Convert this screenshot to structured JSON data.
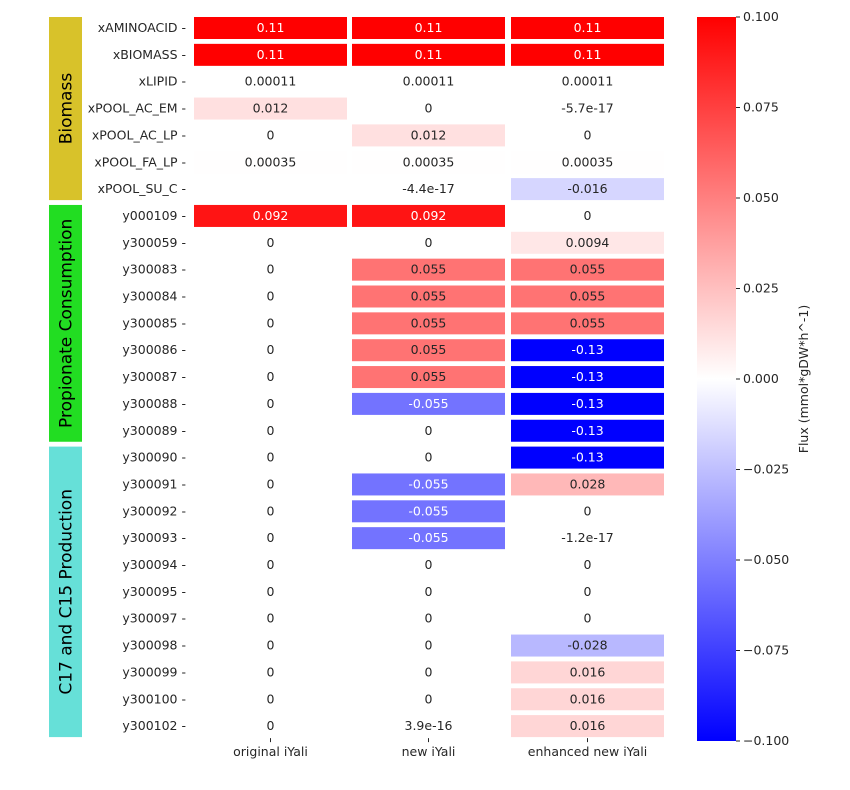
{
  "chart_data": {
    "type": "heatmap",
    "title": "",
    "xlabel": "",
    "ylabel": "",
    "columns": [
      "original iYali",
      "new iYali",
      "enhanced new iYali"
    ],
    "rows": [
      "xAMINOACID",
      "xBIOMASS",
      "xLIPID",
      "xPOOL_AC_EM",
      "xPOOL_AC_LP",
      "xPOOL_FA_LP",
      "xPOOL_SU_C",
      "y000109",
      "y300059",
      "y300083",
      "y300084",
      "y300085",
      "y300086",
      "y300087",
      "y300088",
      "y300089",
      "y300090",
      "y300091",
      "y300092",
      "y300093",
      "y300094",
      "y300095",
      "y300097",
      "y300098",
      "y300099",
      "y300100",
      "y300102"
    ],
    "values": [
      [
        0.11,
        0.11,
        0.11
      ],
      [
        0.11,
        0.11,
        0.11
      ],
      [
        0.00011,
        0.00011,
        0.00011
      ],
      [
        0.012,
        0,
        -5.7e-17
      ],
      [
        0,
        0.012,
        0
      ],
      [
        0.00035,
        0.00035,
        0.00035
      ],
      [
        null,
        -4.4e-17,
        -0.016
      ],
      [
        0.092,
        0.092,
        0
      ],
      [
        0,
        0,
        0.0094
      ],
      [
        0,
        0.055,
        0.055
      ],
      [
        0,
        0.055,
        0.055
      ],
      [
        0,
        0.055,
        0.055
      ],
      [
        0,
        0.055,
        -0.13
      ],
      [
        0,
        0.055,
        -0.13
      ],
      [
        0,
        -0.055,
        -0.13
      ],
      [
        0,
        0,
        -0.13
      ],
      [
        0,
        0,
        -0.13
      ],
      [
        0,
        -0.055,
        0.028
      ],
      [
        0,
        -0.055,
        0
      ],
      [
        0,
        -0.055,
        -1.2e-17
      ],
      [
        0,
        0,
        0
      ],
      [
        0,
        0,
        0
      ],
      [
        0,
        0,
        0
      ],
      [
        0,
        0,
        -0.028
      ],
      [
        0,
        0,
        0.016
      ],
      [
        0,
        0,
        0.016
      ],
      [
        0,
        3.9e-16,
        0.016
      ]
    ],
    "annotations": [
      [
        "0.11",
        "0.11",
        "0.11"
      ],
      [
        "0.11",
        "0.11",
        "0.11"
      ],
      [
        "0.00011",
        "0.00011",
        "0.00011"
      ],
      [
        "0.012",
        "0",
        "-5.7e-17"
      ],
      [
        "0",
        "0.012",
        "0"
      ],
      [
        "0.00035",
        "0.00035",
        "0.00035"
      ],
      [
        "",
        "-4.4e-17",
        "-0.016"
      ],
      [
        "0.092",
        "0.092",
        "0"
      ],
      [
        "0",
        "0",
        "0.0094"
      ],
      [
        "0",
        "0.055",
        "0.055"
      ],
      [
        "0",
        "0.055",
        "0.055"
      ],
      [
        "0",
        "0.055",
        "0.055"
      ],
      [
        "0",
        "0.055",
        "-0.13"
      ],
      [
        "0",
        "0.055",
        "-0.13"
      ],
      [
        "0",
        "-0.055",
        "-0.13"
      ],
      [
        "0",
        "0",
        "-0.13"
      ],
      [
        "0",
        "0",
        "-0.13"
      ],
      [
        "0",
        "-0.055",
        "0.028"
      ],
      [
        "0",
        "-0.055",
        "0"
      ],
      [
        "0",
        "-0.055",
        "-1.2e-17"
      ],
      [
        "0",
        "0",
        "0"
      ],
      [
        "0",
        "0",
        "0"
      ],
      [
        "0",
        "0",
        "0"
      ],
      [
        "0",
        "0",
        "-0.028"
      ],
      [
        "0",
        "0",
        "0.016"
      ],
      [
        "0",
        "0",
        "0.016"
      ],
      [
        "0",
        "3.9e-16",
        "0.016"
      ]
    ],
    "colormap": "bwr",
    "vmin": -0.1,
    "vmax": 0.1,
    "colorbar": {
      "label": "Flux (mmol*gDW*h^-1)",
      "ticks": [
        0.1,
        0.075,
        0.05,
        0.025,
        0.0,
        -0.025,
        -0.05,
        -0.075,
        -0.1
      ],
      "tick_labels": [
        "0.100",
        "0.075",
        "0.050",
        "0.025",
        "0.000",
        "−0.025",
        "−0.050",
        "−0.075",
        "−0.100"
      ]
    },
    "groups": [
      {
        "label": "Biomass",
        "color": "#d8c22a",
        "first_row": "xAMINOACID",
        "last_row": "xPOOL_SU_C"
      },
      {
        "label": "Propionate Consumption",
        "color": "#22dd22",
        "first_row": "y000109",
        "last_row": "y300089"
      },
      {
        "label": "C17 and C15 Production",
        "color": "#66e0d8",
        "first_row": "y300090",
        "last_row": "y300102"
      }
    ]
  }
}
